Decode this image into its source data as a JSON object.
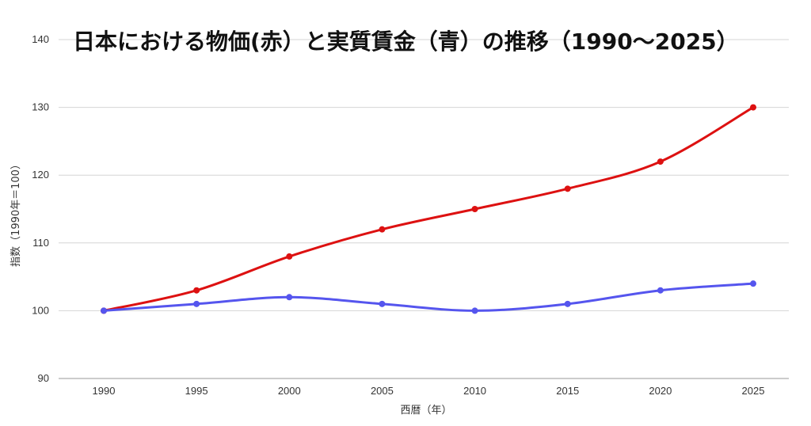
{
  "chart_data": {
    "type": "line",
    "title": "日本における物価(赤）と実質賃金（青）の推移（1990〜2025）",
    "xlabel": "西暦（年）",
    "ylabel": "指数（1990年＝100）",
    "x": [
      1990,
      1995,
      2000,
      2005,
      2010,
      2015,
      2020,
      2025
    ],
    "x_ticks": [
      "1990",
      "1995",
      "2000",
      "2005",
      "2010",
      "2015",
      "2020",
      "2025"
    ],
    "ylim": [
      90,
      140
    ],
    "y_ticks": [
      90,
      100,
      110,
      120,
      130,
      140
    ],
    "grid": true,
    "legend": "none",
    "series": [
      {
        "values": [
          100,
          103,
          108,
          112,
          115,
          118,
          122,
          130
        ],
        "color": "#dd1111"
      },
      {
        "values": [
          100,
          101,
          102,
          101,
          100,
          101,
          103,
          104
        ],
        "color": "#5555ee"
      }
    ]
  }
}
